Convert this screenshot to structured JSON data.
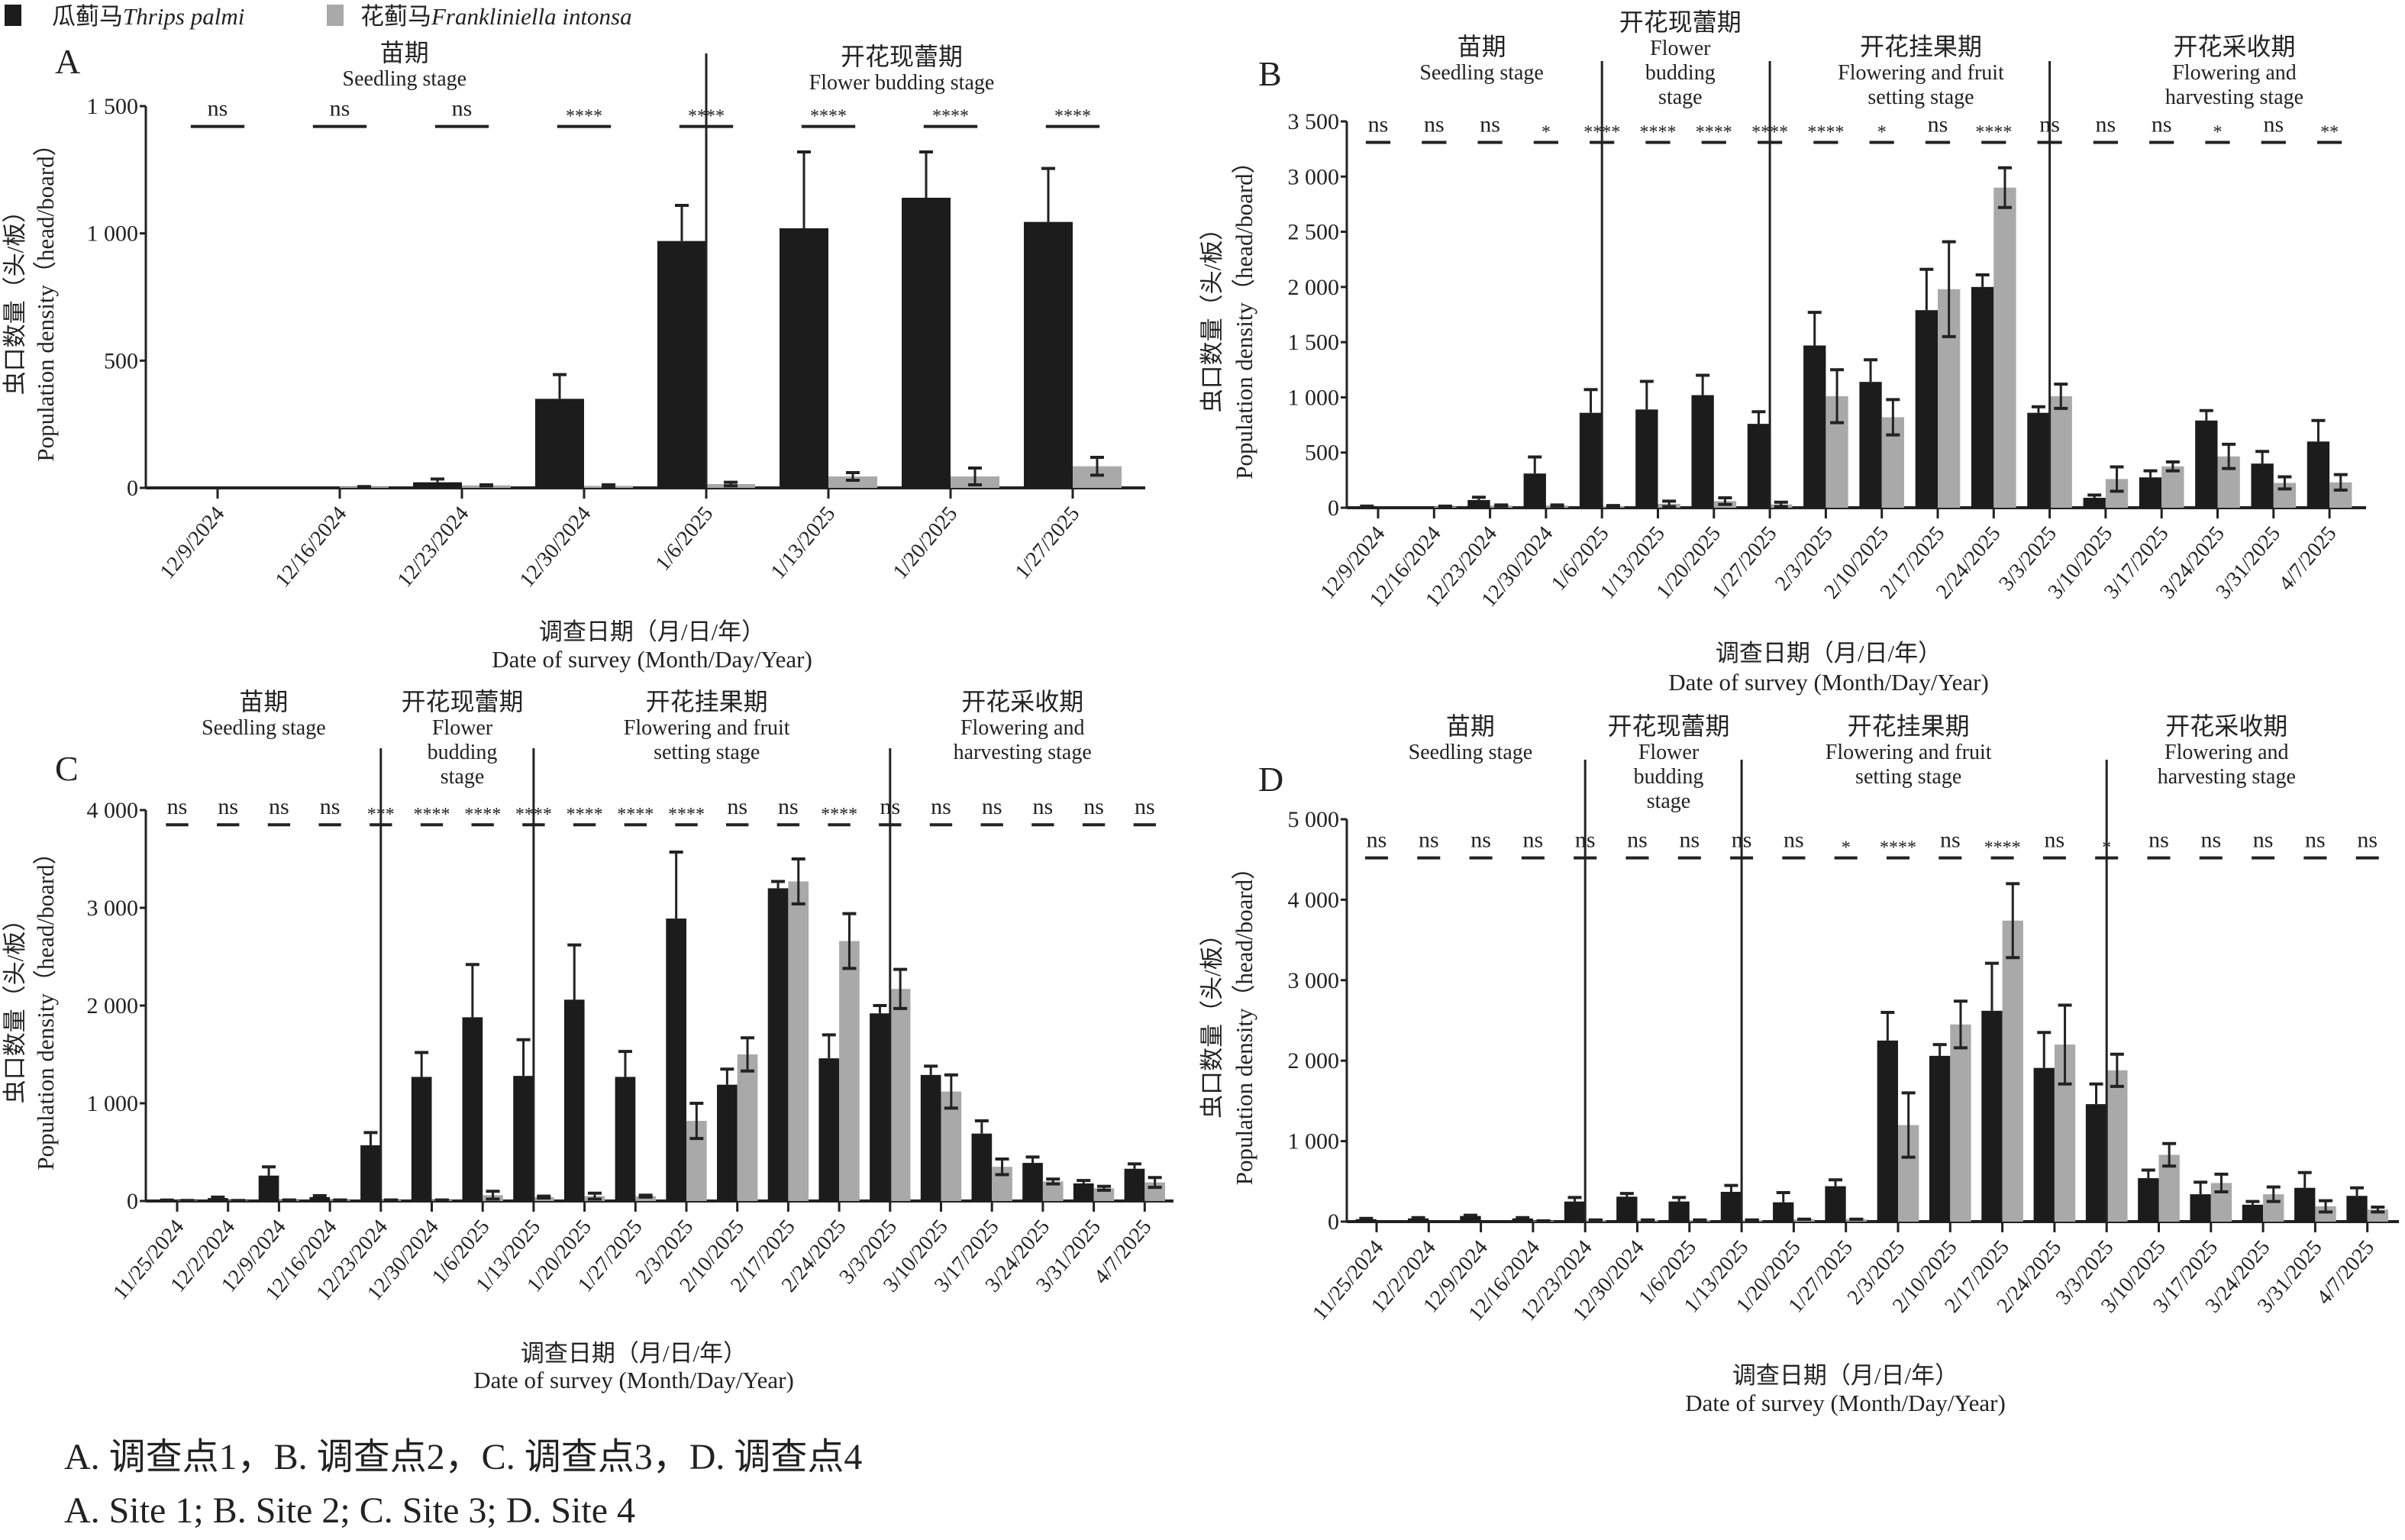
{
  "legend": [
    {
      "cn": "瓜蓟马",
      "latin": "Thrips palmi",
      "color": "#1c1c1c"
    },
    {
      "cn": "花蓟马",
      "latin": "Frankliniella intonsa",
      "color": "#a9a9a9"
    }
  ],
  "axis_titles": {
    "y_cn": "虫口数量（头/板）",
    "y_en": "Population density（head/board）",
    "x_cn": "调查日期（月/日/年）",
    "x_en": "Date of survey (Month/Day/Year)"
  },
  "caption": {
    "cn": "A. 调查点1，B. 调查点2，C. 调查点3，D. 调查点4",
    "en": "A. Site 1; B. Site 2; C. Site 3; D. Site 4"
  },
  "chart_data": [
    {
      "type": "bar",
      "title": "A",
      "ylim": [
        0,
        1500
      ],
      "yticks": [
        0,
        500,
        1000,
        1500
      ],
      "ytick_labels": [
        "0",
        "500",
        "1 000",
        "1 500"
      ],
      "categories": [
        "12/9/2024",
        "12/16/2024",
        "12/23/2024",
        "12/30/2024",
        "1/6/2025",
        "1/13/2025",
        "1/20/2025",
        "1/27/2025"
      ],
      "series": [
        {
          "name": "Thrips palmi",
          "values": [
            0,
            0,
            22,
            350,
            970,
            1020,
            1140,
            1045
          ],
          "errors": [
            0,
            0,
            13,
            95,
            140,
            300,
            180,
            210
          ]
        },
        {
          "name": "Frankliniella intonsa",
          "values": [
            0,
            5,
            10,
            8,
            15,
            45,
            45,
            85
          ],
          "errors": [
            0,
            0,
            2,
            4,
            7,
            15,
            33,
            35
          ]
        }
      ],
      "significance": [
        "ns",
        "ns",
        "ns",
        "****",
        "****",
        "****",
        "****",
        "****"
      ],
      "stage_dividers_at": [
        4
      ],
      "stages": [
        {
          "cn": "苗期",
          "en": [
            "Seedling stage"
          ]
        },
        {
          "cn": "开花现蕾期",
          "en": [
            "Flower budding stage"
          ]
        }
      ]
    },
    {
      "type": "bar",
      "title": "B",
      "ylim": [
        0,
        3500
      ],
      "yticks": [
        0,
        500,
        1000,
        1500,
        2000,
        2500,
        3000,
        3500
      ],
      "ytick_labels": [
        "0",
        "500",
        "1 000",
        "1 500",
        "2 000",
        "2 500",
        "3 000",
        "3 500"
      ],
      "categories": [
        "12/9/2024",
        "12/16/2024",
        "12/23/2024",
        "12/30/2024",
        "1/6/2025",
        "1/13/2025",
        "1/20/2025",
        "1/27/2025",
        "2/3/2025",
        "2/10/2025",
        "2/17/2025",
        "2/24/2025",
        "3/3/2025",
        "3/10/2025",
        "3/17/2025",
        "3/24/2025",
        "3/31/2025",
        "4/7/2025"
      ],
      "series": [
        {
          "name": "Thrips palmi",
          "values": [
            10,
            0,
            70,
            310,
            860,
            890,
            1020,
            760,
            1470,
            1140,
            1790,
            2000,
            860,
            90,
            275,
            790,
            400,
            600
          ],
          "errors": [
            5,
            0,
            25,
            150,
            210,
            255,
            180,
            110,
            300,
            200,
            370,
            110,
            55,
            25,
            60,
            90,
            110,
            190
          ]
        },
        {
          "name": "Frankliniella intonsa",
          "values": [
            0,
            10,
            20,
            20,
            15,
            35,
            60,
            30,
            1010,
            820,
            1980,
            2900,
            1010,
            260,
            375,
            465,
            225,
            230
          ],
          "errors": [
            0,
            5,
            5,
            5,
            5,
            25,
            30,
            20,
            240,
            160,
            430,
            180,
            110,
            110,
            40,
            110,
            55,
            70
          ]
        }
      ],
      "significance": [
        "ns",
        "ns",
        "ns",
        "*",
        "****",
        "****",
        "****",
        "****",
        "****",
        "*",
        "ns",
        "****",
        "ns",
        "ns",
        "ns",
        "*",
        "ns",
        "**"
      ],
      "stage_dividers_at": [
        4,
        7,
        12
      ],
      "stages": [
        {
          "cn": "苗期",
          "en": [
            "Seedling stage"
          ]
        },
        {
          "cn": "开花现蕾期",
          "en": [
            "Flower",
            "budding",
            "stage"
          ]
        },
        {
          "cn": "开花挂果期",
          "en": [
            "Flowering and fruit",
            "setting stage"
          ]
        },
        {
          "cn": "开花采收期",
          "en": [
            "Flowering and",
            "harvesting stage"
          ]
        }
      ]
    },
    {
      "type": "bar",
      "title": "C",
      "ylim": [
        0,
        4000
      ],
      "yticks": [
        0,
        1000,
        2000,
        3000,
        4000
      ],
      "ytick_labels": [
        "0",
        "1 000",
        "2 000",
        "3 000",
        "4 000"
      ],
      "categories": [
        "11/25/2024",
        "12/2/2024",
        "12/9/2024",
        "12/16/2024",
        "12/23/2024",
        "12/30/2024",
        "1/6/2025",
        "1/13/2025",
        "1/20/2025",
        "1/27/2025",
        "2/3/2025",
        "2/10/2025",
        "2/17/2025",
        "2/24/2025",
        "3/3/2025",
        "3/10/2025",
        "3/17/2025",
        "3/24/2025",
        "3/31/2025",
        "4/7/2025"
      ],
      "series": [
        {
          "name": "Thrips palmi",
          "values": [
            5,
            30,
            260,
            40,
            570,
            1270,
            1880,
            1280,
            2060,
            1270,
            2890,
            1190,
            3200,
            1460,
            1920,
            1290,
            690,
            390,
            180,
            330
          ],
          "errors": [
            5,
            10,
            90,
            15,
            130,
            250,
            540,
            370,
            560,
            260,
            680,
            160,
            70,
            240,
            80,
            90,
            130,
            60,
            30,
            50
          ]
        },
        {
          "name": "Frankliniella intonsa",
          "values": [
            5,
            5,
            10,
            10,
            10,
            10,
            60,
            40,
            50,
            50,
            820,
            1500,
            3270,
            2660,
            2170,
            1120,
            350,
            200,
            130,
            190
          ],
          "errors": [
            0,
            0,
            0,
            0,
            0,
            0,
            40,
            10,
            30,
            10,
            180,
            170,
            230,
            280,
            200,
            170,
            80,
            25,
            20,
            50
          ]
        }
      ],
      "significance": [
        "ns",
        "ns",
        "ns",
        "ns",
        "***",
        "****",
        "****",
        "****",
        "****",
        "****",
        "****",
        "ns",
        "ns",
        "****",
        "ns",
        "ns",
        "ns",
        "ns",
        "ns",
        "ns"
      ],
      "stage_dividers_at": [
        4,
        7,
        14
      ],
      "stages": [
        {
          "cn": "苗期",
          "en": [
            "Seedling stage"
          ]
        },
        {
          "cn": "开花现蕾期",
          "en": [
            "Flower",
            "budding",
            "stage"
          ]
        },
        {
          "cn": "开花挂果期",
          "en": [
            "Flowering and fruit",
            "setting stage"
          ]
        },
        {
          "cn": "开花采收期",
          "en": [
            "Flowering and",
            "harvesting stage"
          ]
        }
      ]
    },
    {
      "type": "bar",
      "title": "D",
      "ylim": [
        0,
        5000
      ],
      "yticks": [
        0,
        1000,
        2000,
        3000,
        4000,
        5000
      ],
      "ytick_labels": [
        "0",
        "1 000",
        "2 000",
        "3 000",
        "4 000",
        "5 000"
      ],
      "categories": [
        "11/25/2024",
        "12/2/2024",
        "12/9/2024",
        "12/16/2024",
        "12/23/2024",
        "12/30/2024",
        "1/6/2025",
        "1/13/2025",
        "1/20/2025",
        "1/27/2025",
        "2/3/2025",
        "2/10/2025",
        "2/17/2025",
        "2/24/2025",
        "3/3/2025",
        "3/10/2025",
        "3/17/2025",
        "3/24/2025",
        "3/31/2025",
        "4/7/2025"
      ],
      "series": [
        {
          "name": "Thrips palmi",
          "values": [
            30,
            40,
            70,
            40,
            250,
            310,
            250,
            370,
            240,
            440,
            2250,
            2060,
            2620,
            1910,
            1460,
            540,
            340,
            210,
            420,
            320
          ],
          "errors": [
            10,
            10,
            10,
            10,
            50,
            40,
            50,
            80,
            120,
            80,
            350,
            140,
            590,
            440,
            250,
            100,
            150,
            40,
            190,
            100
          ]
        },
        {
          "name": "Frankliniella intonsa",
          "values": [
            0,
            0,
            0,
            10,
            20,
            20,
            20,
            20,
            30,
            30,
            1200,
            2450,
            3740,
            2200,
            1880,
            830,
            480,
            340,
            190,
            150
          ],
          "errors": [
            0,
            0,
            0,
            0,
            0,
            0,
            0,
            0,
            0,
            0,
            400,
            290,
            460,
            490,
            200,
            140,
            110,
            90,
            70,
            30
          ]
        }
      ],
      "significance": [
        "ns",
        "ns",
        "ns",
        "ns",
        "ns",
        "ns",
        "ns",
        "ns",
        "ns",
        "*",
        "****",
        "ns",
        "****",
        "ns",
        "*",
        "ns",
        "ns",
        "ns",
        "ns",
        "ns"
      ],
      "stage_dividers_at": [
        4,
        7,
        14
      ],
      "stages": [
        {
          "cn": "苗期",
          "en": [
            "Seedling stage"
          ]
        },
        {
          "cn": "开花现蕾期",
          "en": [
            "Flower",
            "budding",
            "stage"
          ]
        },
        {
          "cn": "开花挂果期",
          "en": [
            "Flowering and fruit",
            "setting stage"
          ]
        },
        {
          "cn": "开花采收期",
          "en": [
            "Flowering and",
            "harvesting stage"
          ]
        }
      ]
    }
  ]
}
